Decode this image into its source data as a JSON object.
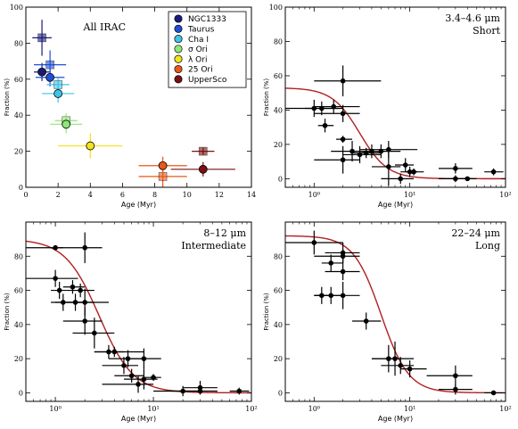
{
  "figure": {
    "background": "#ffffff"
  },
  "chart_data": [
    {
      "type": "scatter",
      "panel": "top-left",
      "title": "All IRAC",
      "xlabel": "Age (Myr)",
      "ylabel": "Fraction (%)",
      "xscale": "linear",
      "xlim": [
        0,
        14
      ],
      "ylim": [
        0,
        100
      ],
      "xticks": [
        0,
        2,
        4,
        6,
        8,
        10,
        12,
        14
      ],
      "yticks": [
        0,
        20,
        40,
        60,
        80,
        100
      ],
      "xtick_labels": [
        "0",
        "2",
        "4",
        "6",
        "8",
        "10",
        "12",
        "14"
      ],
      "ytick_labels": [
        "0",
        "20",
        "40",
        "60",
        "80",
        "100"
      ],
      "legend": {
        "position": "top-right",
        "entries": [
          {
            "label": "NGC1333",
            "color": "#1a1a7a"
          },
          {
            "label": "Taurus",
            "color": "#1f4fd8"
          },
          {
            "label": "Cha I",
            "color": "#3ec4e6"
          },
          {
            "label": "σ Ori",
            "color": "#8ee67a"
          },
          {
            "label": "λ Ori",
            "color": "#f5e21a"
          },
          {
            "label": "25 Ori",
            "color": "#e8581a"
          },
          {
            "label": "UpperSco",
            "color": "#7a1010"
          }
        ]
      },
      "series": [
        {
          "name": "NGC1333",
          "color": "#1a1a7a",
          "points": [
            {
              "x": 1.0,
              "y": 83,
              "xerr": 0.6,
              "yerr": 10,
              "marker": "square"
            },
            {
              "x": 1.0,
              "y": 64,
              "xerr": 0.5,
              "yerr": 5,
              "marker": "circle"
            }
          ]
        },
        {
          "name": "Taurus",
          "color": "#1f4fd8",
          "points": [
            {
              "x": 1.5,
              "y": 68,
              "xerr": 1.0,
              "yerr": 8,
              "marker": "square"
            },
            {
              "x": 1.5,
              "y": 61,
              "xerr": 0.9,
              "yerr": 5,
              "marker": "circle"
            }
          ]
        },
        {
          "name": "Cha I",
          "color": "#3ec4e6",
          "points": [
            {
              "x": 2.0,
              "y": 57,
              "xerr": 0.7,
              "yerr": 4,
              "marker": "square"
            },
            {
              "x": 2.0,
              "y": 52,
              "xerr": 1.0,
              "yerr": 5,
              "marker": "circle"
            }
          ]
        },
        {
          "name": "σ Ori",
          "color": "#8ee67a",
          "points": [
            {
              "x": 2.5,
              "y": 37,
              "xerr": 0.7,
              "yerr": 4,
              "marker": "square"
            },
            {
              "x": 2.5,
              "y": 35,
              "xerr": 1.0,
              "yerr": 5,
              "marker": "circle"
            }
          ]
        },
        {
          "name": "λ Ori",
          "color": "#f5e21a",
          "points": [
            {
              "x": 4.0,
              "y": 23,
              "xerr": 2.0,
              "yerr": 7,
              "marker": "circle"
            }
          ]
        },
        {
          "name": "25 Ori",
          "color": "#e8581a",
          "points": [
            {
              "x": 8.5,
              "y": 6,
              "xerr": 1.5,
              "yerr": 6,
              "marker": "square"
            },
            {
              "x": 8.5,
              "y": 12,
              "xerr": 1.5,
              "yerr": 5,
              "marker": "circle"
            }
          ]
        },
        {
          "name": "UpperSco",
          "color": "#7a1010",
          "points": [
            {
              "x": 11.0,
              "y": 20,
              "xerr": 0.7,
              "yerr": 2,
              "marker": "square"
            },
            {
              "x": 11.0,
              "y": 10,
              "xerr": 2.0,
              "yerr": 4,
              "marker": "circle"
            }
          ]
        }
      ]
    },
    {
      "type": "scatter",
      "panel": "top-right",
      "title": [
        "3.4–4.6 μm",
        "Short"
      ],
      "xlabel": "Age (Myr)",
      "ylabel": "Fraction (%)",
      "xscale": "log",
      "xlim": [
        0.5,
        100
      ],
      "ylim": [
        -5,
        100
      ],
      "xticks": [
        1,
        10,
        100
      ],
      "xtick_labels": [
        "10⁰",
        "10¹",
        "10²"
      ],
      "yticks": [
        0,
        20,
        40,
        60,
        80,
        100
      ],
      "ytick_labels": [
        "0",
        "20",
        "40",
        "60",
        "80",
        "100"
      ],
      "fit_curve": {
        "color": "#b21f1f",
        "amplitude": 53,
        "x0": 3.0,
        "slope": 3.0
      },
      "points": [
        {
          "x": 1.0,
          "y": 41,
          "xlo": 0.5,
          "xhi": 2.0,
          "yerr": 5
        },
        {
          "x": 1.2,
          "y": 41,
          "xlo": 0.8,
          "xhi": 1.8,
          "yerr": 4
        },
        {
          "x": 1.3,
          "y": 31,
          "xlo": 1.1,
          "xhi": 1.6,
          "yerr": 4
        },
        {
          "x": 1.6,
          "y": 42,
          "xlo": 1.0,
          "xhi": 3.0,
          "yerr": 4
        },
        {
          "x": 2.0,
          "y": 38,
          "xlo": 1.0,
          "xhi": 3.0,
          "yerr": 5
        },
        {
          "x": 2.0,
          "y": 57,
          "xlo": 1.0,
          "xhi": 5.0,
          "yerr": 9
        },
        {
          "x": 2.0,
          "y": 23,
          "xlo": 1.7,
          "xhi": 2.5,
          "yerr": 2
        },
        {
          "x": 2.0,
          "y": 11,
          "xlo": 1.0,
          "xhi": 3.0,
          "yerr": 8
        },
        {
          "x": 2.5,
          "y": 16,
          "xlo": 1.5,
          "xhi": 4.0,
          "yerr": 6
        },
        {
          "x": 3.0,
          "y": 14,
          "xlo": 2.0,
          "xhi": 5.0,
          "yerr": 5
        },
        {
          "x": 3.5,
          "y": 15,
          "xlo": 2.5,
          "xhi": 5.0,
          "yerr": 3
        },
        {
          "x": 4.0,
          "y": 16,
          "xlo": 3.0,
          "xhi": 5.5,
          "yerr": 4
        },
        {
          "x": 5.0,
          "y": 16,
          "xlo": 3.0,
          "xhi": 8.0,
          "yerr": 4
        },
        {
          "x": 6.0,
          "y": 17,
          "xlo": 3.0,
          "xhi": 12.0,
          "yerr": 5
        },
        {
          "x": 6.0,
          "y": 7,
          "xlo": 4.0,
          "xhi": 8.0,
          "yerr": 11
        },
        {
          "x": 8.0,
          "y": 0,
          "xlo": 5.0,
          "xhi": 11.0,
          "yerr": 3
        },
        {
          "x": 9.0,
          "y": 8,
          "xlo": 7.0,
          "xhi": 11.0,
          "yerr": 4
        },
        {
          "x": 10.0,
          "y": 4,
          "xlo": 8.0,
          "xhi": 12.0,
          "yerr": 3
        },
        {
          "x": 11.0,
          "y": 4,
          "xlo": 9.0,
          "xhi": 14.0,
          "yerr": 2
        },
        {
          "x": 30.0,
          "y": 6,
          "xlo": 20.0,
          "xhi": 45.0,
          "yerr": 3
        },
        {
          "x": 30.0,
          "y": 0,
          "xlo": 20.0,
          "xhi": 45.0,
          "yerr": 2
        },
        {
          "x": 40.0,
          "y": 0,
          "xlo": 30.0,
          "xhi": 50.0,
          "yerr": 1
        },
        {
          "x": 75.0,
          "y": 4,
          "xlo": 60.0,
          "xhi": 95.0,
          "yerr": 2
        }
      ]
    },
    {
      "type": "scatter",
      "panel": "bottom-left",
      "title": [
        "8–12 μm",
        "Intermediate"
      ],
      "xlabel": "Age (Myr)",
      "ylabel": "Fraction (%)",
      "xscale": "log",
      "xlim": [
        0.5,
        100
      ],
      "ylim": [
        -5,
        100
      ],
      "xticks": [
        1,
        10,
        100
      ],
      "xtick_labels": [
        "10⁰",
        "10¹",
        "10²"
      ],
      "yticks": [
        0,
        20,
        40,
        60,
        80
      ],
      "ytick_labels": [
        "0",
        "20",
        "40",
        "60",
        "80"
      ],
      "fit_curve": {
        "color": "#b21f1f",
        "amplitude": 90,
        "x0": 2.8,
        "slope": 2.5
      },
      "points": [
        {
          "x": 1.0,
          "y": 67,
          "xlo": 0.5,
          "xhi": 1.7,
          "yerr": 5
        },
        {
          "x": 1.0,
          "y": 85,
          "xlo": 0.5,
          "xhi": 1.2,
          "yerr": 0
        },
        {
          "x": 1.1,
          "y": 60,
          "xlo": 0.9,
          "xhi": 1.3,
          "yerr": 5
        },
        {
          "x": 1.2,
          "y": 53,
          "xlo": 0.9,
          "xhi": 2.0,
          "yerr": 5
        },
        {
          "x": 1.5,
          "y": 62,
          "xlo": 1.2,
          "xhi": 2.0,
          "yerr": 4
        },
        {
          "x": 1.6,
          "y": 53,
          "xlo": 1.0,
          "xhi": 2.5,
          "yerr": 5
        },
        {
          "x": 1.8,
          "y": 60,
          "xlo": 1.3,
          "xhi": 2.5,
          "yerr": 4
        },
        {
          "x": 2.0,
          "y": 85,
          "xlo": 1.0,
          "xhi": 3.0,
          "yerr": 9
        },
        {
          "x": 2.0,
          "y": 53,
          "xlo": 1.3,
          "xhi": 3.5,
          "yerr": 8
        },
        {
          "x": 2.0,
          "y": 42,
          "xlo": 1.2,
          "xhi": 3.0,
          "yerr": 8
        },
        {
          "x": 2.5,
          "y": 35,
          "xlo": 1.5,
          "xhi": 4.0,
          "yerr": 9
        },
        {
          "x": 3.5,
          "y": 24,
          "xlo": 2.5,
          "xhi": 5.0,
          "yerr": 4
        },
        {
          "x": 4.0,
          "y": 24,
          "xlo": 2.5,
          "xhi": 8.0,
          "yerr": 3
        },
        {
          "x": 5.0,
          "y": 16,
          "xlo": 3.0,
          "xhi": 7.0,
          "yerr": 5
        },
        {
          "x": 5.5,
          "y": 20,
          "xlo": 3.5,
          "xhi": 8.0,
          "yerr": 5
        },
        {
          "x": 6.0,
          "y": 10,
          "xlo": 4.0,
          "xhi": 8.0,
          "yerr": 4
        },
        {
          "x": 7.0,
          "y": 5,
          "xlo": 3.0,
          "xhi": 10.0,
          "yerr": 5
        },
        {
          "x": 8.0,
          "y": 20,
          "xlo": 5.0,
          "xhi": 12.0,
          "yerr": 6
        },
        {
          "x": 8.0,
          "y": 8,
          "xlo": 5.0,
          "xhi": 11.0,
          "yerr": 6
        },
        {
          "x": 10.0,
          "y": 9,
          "xlo": 8.0,
          "xhi": 12.0,
          "yerr": 2
        },
        {
          "x": 20.0,
          "y": 1,
          "xlo": 10.0,
          "xhi": 30.0,
          "yerr": 3
        },
        {
          "x": 30.0,
          "y": 1,
          "xlo": 15.0,
          "xhi": 45.0,
          "yerr": 2
        },
        {
          "x": 30.0,
          "y": 3,
          "xlo": 20.0,
          "xhi": 45.0,
          "yerr": 4
        },
        {
          "x": 75.0,
          "y": 1,
          "xlo": 60.0,
          "xhi": 95.0,
          "yerr": 2
        }
      ]
    },
    {
      "type": "scatter",
      "panel": "bottom-right",
      "title": [
        "22–24 μm",
        "Long"
      ],
      "xlabel": "Age (Myr)",
      "ylabel": "Fraction (%)",
      "xscale": "log",
      "xlim": [
        0.5,
        100
      ],
      "ylim": [
        -5,
        100
      ],
      "xticks": [
        1,
        10,
        100
      ],
      "xtick_labels": [
        "10⁰",
        "10¹",
        "10²"
      ],
      "yticks": [
        0,
        20,
        40,
        60,
        80
      ],
      "ytick_labels": [
        "0",
        "20",
        "40",
        "60",
        "80"
      ],
      "fit_curve": {
        "color": "#b21f1f",
        "amplitude": 92,
        "x0": 5.0,
        "slope": 3.0
      },
      "points": [
        {
          "x": 1.0,
          "y": 88,
          "xlo": 0.5,
          "xhi": 2.0,
          "yerr": 7
        },
        {
          "x": 1.2,
          "y": 57,
          "xlo": 1.0,
          "xhi": 1.5,
          "yerr": 5
        },
        {
          "x": 1.5,
          "y": 76,
          "xlo": 1.2,
          "xhi": 2.0,
          "yerr": 5
        },
        {
          "x": 1.5,
          "y": 57,
          "xlo": 1.0,
          "xhi": 2.0,
          "yerr": 5
        },
        {
          "x": 2.0,
          "y": 82,
          "xlo": 1.3,
          "xhi": 3.0,
          "yerr": 6
        },
        {
          "x": 2.0,
          "y": 80,
          "xlo": 1.0,
          "xhi": 3.0,
          "yerr": 4
        },
        {
          "x": 2.0,
          "y": 71,
          "xlo": 1.3,
          "xhi": 3.0,
          "yerr": 5
        },
        {
          "x": 2.0,
          "y": 57,
          "xlo": 1.0,
          "xhi": 3.0,
          "yerr": 8
        },
        {
          "x": 3.5,
          "y": 42,
          "xlo": 2.5,
          "xhi": 5.0,
          "yerr": 5
        },
        {
          "x": 6.0,
          "y": 20,
          "xlo": 4.0,
          "xhi": 8.0,
          "yerr": 8
        },
        {
          "x": 7.0,
          "y": 20,
          "xlo": 4.0,
          "xhi": 11.0,
          "yerr": 10
        },
        {
          "x": 8.0,
          "y": 16,
          "xlo": 5.0,
          "xhi": 11.0,
          "yerr": 5
        },
        {
          "x": 10.0,
          "y": 14,
          "xlo": 8.0,
          "xhi": 15.0,
          "yerr": 5
        },
        {
          "x": 30.0,
          "y": 10,
          "xlo": 15.0,
          "xhi": 45.0,
          "yerr": 6
        },
        {
          "x": 30.0,
          "y": 2,
          "xlo": 20.0,
          "xhi": 45.0,
          "yerr": 3
        },
        {
          "x": 75.0,
          "y": 0,
          "xlo": 60.0,
          "xhi": 95.0,
          "yerr": 1
        }
      ]
    }
  ]
}
